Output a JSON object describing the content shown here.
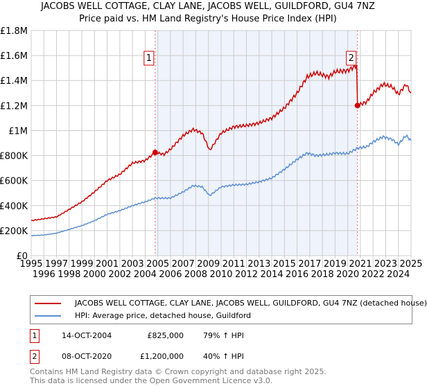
{
  "title": "JACOBS WELL COTTAGE, CLAY LANE, JACOBS WELL, GUILDFORD, GU4 7NZ",
  "subtitle": "Price paid vs. HM Land Registry's House Price Index (HPI)",
  "chart_data": {
    "type": "line",
    "xlim": [
      1995,
      2025
    ],
    "ylim": [
      0,
      1800000
    ],
    "yticks": [
      0,
      200000,
      400000,
      600000,
      800000,
      1000000,
      1200000,
      1400000,
      1600000,
      1800000
    ],
    "ytick_labels": [
      "£0",
      "£200K",
      "£400K",
      "£600K",
      "£800K",
      "£1M",
      "£1.2M",
      "£1.4M",
      "£1.6M",
      "£1.8M"
    ],
    "xticks": [
      "1995",
      "1996",
      "1997",
      "1998",
      "1999",
      "2000",
      "2001",
      "2002",
      "2003",
      "2004",
      "2005",
      "2006",
      "2007",
      "2008",
      "2009",
      "2010",
      "2011",
      "2012",
      "2013",
      "2014",
      "2015",
      "2016",
      "2017",
      "2018",
      "2019",
      "2020",
      "2021",
      "2022",
      "2023",
      "2024",
      "2025"
    ],
    "grid": true,
    "series": [
      {
        "name": "JACOBS WELL COTTAGE, CLAY LANE, JACOBS WELL, GUILDFORD, GU4 7NZ (detached house)",
        "color": "#cc0000",
        "x": [
          1995,
          1996,
          1997,
          1998,
          1999,
          2000,
          2001,
          2002,
          2003,
          2004,
          2004.79,
          2005.5,
          2006,
          2007,
          2007.8,
          2008.5,
          2009.1,
          2010,
          2011,
          2012,
          2013,
          2014,
          2015,
          2016,
          2016.8,
          2017.5,
          2018.5,
          2019,
          2020,
          2020.7,
          2020.77,
          2021.5,
          2022,
          2022.8,
          2023.5,
          2024,
          2024.6,
          2025
        ],
        "y": [
          280000,
          295000,
          310000,
          370000,
          430000,
          510000,
          600000,
          650000,
          740000,
          760000,
          825000,
          810000,
          850000,
          960000,
          1010000,
          980000,
          840000,
          980000,
          1030000,
          1040000,
          1060000,
          1100000,
          1180000,
          1300000,
          1430000,
          1460000,
          1430000,
          1470000,
          1480000,
          1520000,
          1200000,
          1230000,
          1300000,
          1370000,
          1350000,
          1290000,
          1370000,
          1300000
        ]
      },
      {
        "name": "HPI: Average price, detached house, Guildford",
        "color": "#5b8fd0",
        "x": [
          1995,
          1996,
          1997,
          1998,
          1999,
          2000,
          2001,
          2002,
          2003,
          2004,
          2004.79,
          2006,
          2007,
          2007.8,
          2008.5,
          2009.1,
          2010,
          2011,
          2012,
          2013,
          2014,
          2015,
          2016,
          2016.8,
          2017.5,
          2018.5,
          2019,
          2020,
          2020.77,
          2021.5,
          2022,
          2022.8,
          2023.5,
          2024,
          2024.6,
          2025
        ],
        "y": [
          160000,
          165000,
          180000,
          210000,
          240000,
          280000,
          330000,
          360000,
          400000,
          430000,
          460000,
          460000,
          510000,
          560000,
          550000,
          480000,
          550000,
          565000,
          570000,
          590000,
          620000,
          690000,
          770000,
          820000,
          800000,
          810000,
          820000,
          815000,
          860000,
          870000,
          910000,
          950000,
          930000,
          890000,
          960000,
          920000
        ]
      }
    ],
    "sales": [
      {
        "label": "1",
        "x": 2004.79,
        "price": 825000,
        "date": "14-OCT-2004",
        "price_text": "£825,000",
        "hpi": "79% ↑ HPI"
      },
      {
        "label": "2",
        "x": 2020.77,
        "price": 1200000,
        "date": "08-OCT-2020",
        "price_text": "£1,200,000",
        "hpi": "40% ↑ HPI"
      }
    ],
    "shade_color": "#eef3fc"
  },
  "footer": [
    "Contains HM Land Registry data © Crown copyright and database right 2025.",
    "This data is licensed under the Open Government Licence v3.0."
  ]
}
